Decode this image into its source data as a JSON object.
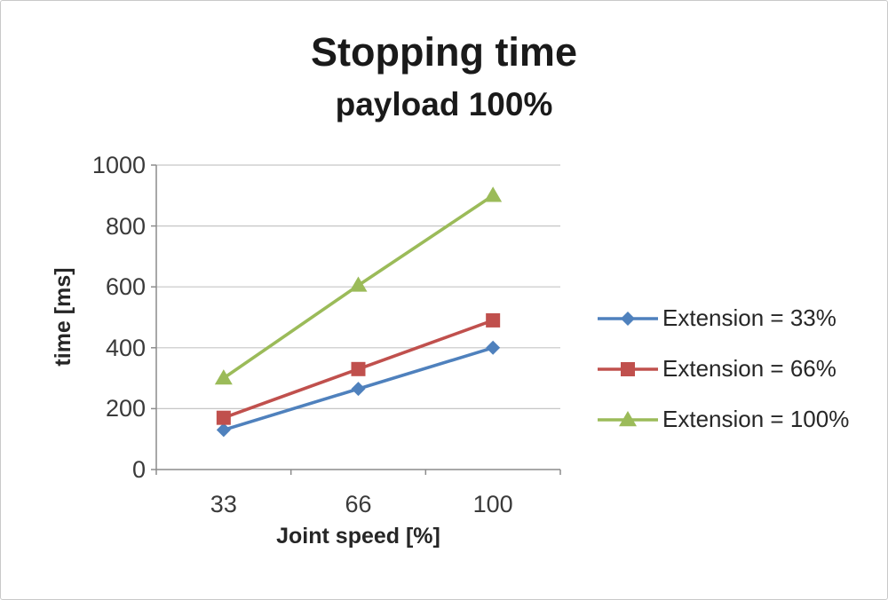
{
  "chart_data": {
    "type": "line",
    "title": "Stopping time",
    "subtitle": "payload 100%",
    "xlabel": "Joint speed [%]",
    "ylabel": "time [ms]",
    "x_labels": [
      "33",
      "66",
      "100"
    ],
    "ylim": [
      0,
      1000
    ],
    "yticks": [
      0,
      200,
      400,
      600,
      800,
      1000
    ],
    "grid": true,
    "legend_position": "right",
    "axis_color": "#8c8c8c",
    "grid_color": "#c6c6c6",
    "series": [
      {
        "name": "Extension = 33%",
        "marker": "diamond",
        "color": "#4F81BD",
        "values": [
          130,
          265,
          400
        ]
      },
      {
        "name": "Extension = 66%",
        "marker": "square",
        "color": "#C0504D",
        "values": [
          170,
          330,
          490
        ]
      },
      {
        "name": "Extension = 100%",
        "marker": "triangle",
        "color": "#9BBB59",
        "values": [
          300,
          605,
          900
        ]
      }
    ]
  }
}
